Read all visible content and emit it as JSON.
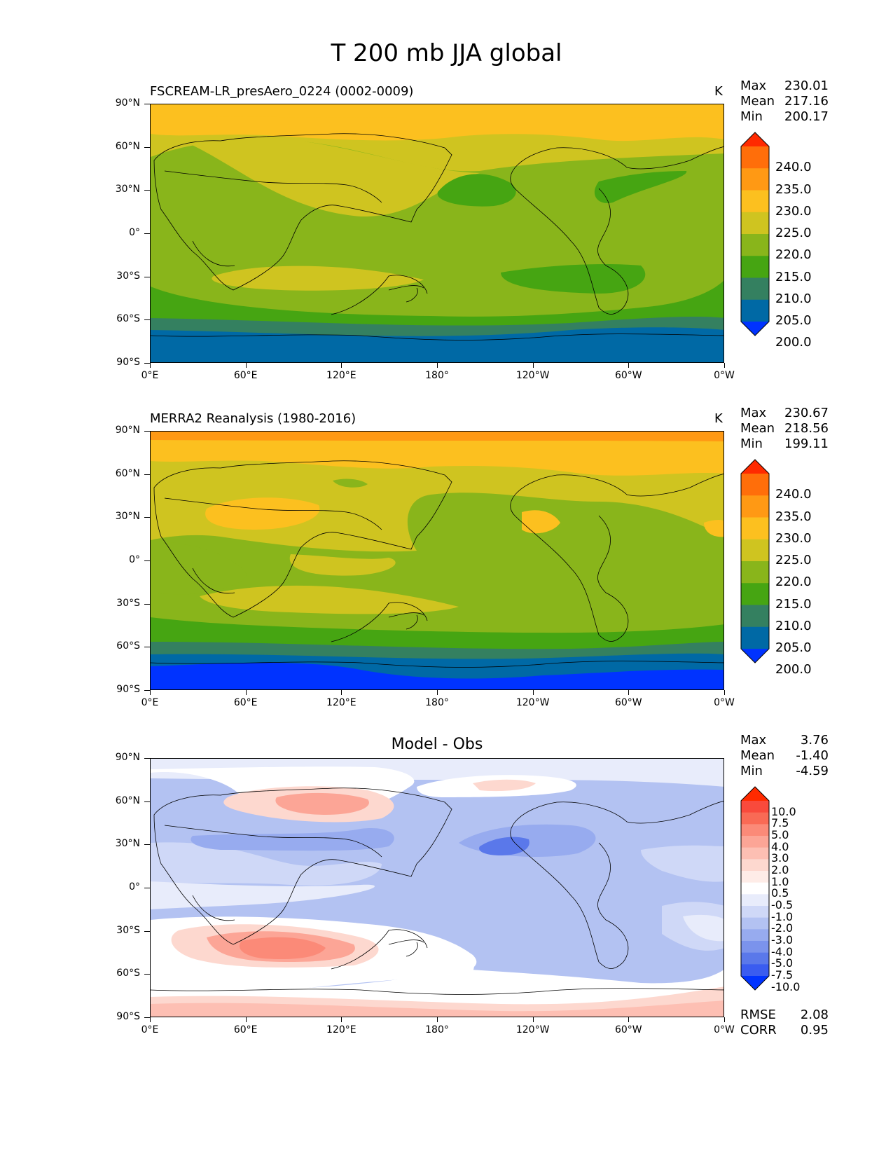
{
  "figure": {
    "title": "T 200 mb JJA global"
  },
  "axes": {
    "yticks": [
      "90°N",
      "60°N",
      "30°N",
      "0°",
      "30°S",
      "60°S",
      "90°S"
    ],
    "xticks": [
      "0°E",
      "60°E",
      "120°E",
      "180°",
      "120°W",
      "60°W",
      "0°W"
    ]
  },
  "panels": [
    {
      "title": "FSCREAM-LR_presAero_0224 (0002-0009)",
      "unit": "K",
      "stats": {
        "max_label": "Max",
        "max": "230.01",
        "mean_label": "Mean",
        "mean": "217.16",
        "min_label": "Min",
        "min": "200.17"
      },
      "colorbar": {
        "levels": [
          "240.0",
          "235.0",
          "230.0",
          "225.0",
          "220.0",
          "215.0",
          "210.0",
          "205.0",
          "200.0"
        ],
        "colors": [
          "#ff2a00",
          "#ff6e0a",
          "#ff9914",
          "#fcc01f",
          "#cfc420",
          "#89b51b",
          "#46a512",
          "#348060",
          "#0069a5",
          "#0033ff"
        ]
      }
    },
    {
      "title": "MERRA2 Reanalysis (1980-2016)",
      "unit": "K",
      "stats": {
        "max_label": "Max",
        "max": "230.67",
        "mean_label": "Mean",
        "mean": "218.56",
        "min_label": "Min",
        "min": "199.11"
      },
      "colorbar": {
        "levels": [
          "240.0",
          "235.0",
          "230.0",
          "225.0",
          "220.0",
          "215.0",
          "210.0",
          "205.0",
          "200.0"
        ],
        "colors": [
          "#ff2a00",
          "#ff6e0a",
          "#ff9914",
          "#fcc01f",
          "#cfc420",
          "#89b51b",
          "#46a512",
          "#348060",
          "#0069a5",
          "#0033ff"
        ]
      }
    },
    {
      "title": "Model - Obs",
      "unit": "",
      "stats": {
        "max_label": "Max",
        "max": "3.76",
        "mean_label": "Mean",
        "mean": "-1.40",
        "min_label": "Min",
        "min": "-4.59"
      },
      "colorbar": {
        "levels": [
          "10.0",
          "7.5",
          "5.0",
          "4.0",
          "3.0",
          "2.0",
          "1.0",
          "0.5",
          "-0.5",
          "-1.0",
          "-2.0",
          "-3.0",
          "-4.0",
          "-5.0",
          "-7.5",
          "-10.0"
        ],
        "colors": [
          "#ff2a00",
          "#f94a3c",
          "#f96a55",
          "#fb8a78",
          "#fca596",
          "#fdbfb3",
          "#fdd8cf",
          "#feece7",
          "#ffffff",
          "#e8ecfb",
          "#cfd8f7",
          "#b3c2f2",
          "#97abef",
          "#7b93ec",
          "#5a78ea",
          "#3a5cf0",
          "#0033ff"
        ]
      },
      "metrics": {
        "rmse_label": "RMSE",
        "rmse": "2.08",
        "corr_label": "CORR",
        "corr": "0.95"
      }
    }
  ]
}
